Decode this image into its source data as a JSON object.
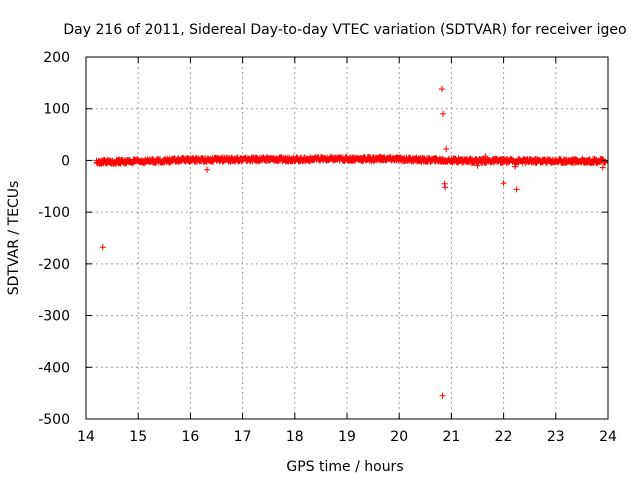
{
  "chart_data": {
    "type": "scatter",
    "title": "Day 216 of 2011, Sidereal Day-to-day VTEC variation (SDTVAR) for receiver igeo",
    "xlabel": "GPS time / hours",
    "ylabel": "SDTVAR / TECUs",
    "xlim": [
      14,
      24
    ],
    "ylim": [
      -500,
      200
    ],
    "x_ticks": [
      14,
      15,
      16,
      17,
      18,
      19,
      20,
      21,
      22,
      23,
      24
    ],
    "y_ticks": [
      -500,
      -400,
      -300,
      -200,
      -100,
      0,
      100,
      200
    ],
    "x_tick_labels": [
      "14",
      "15",
      "16",
      "17",
      "18",
      "19",
      "20",
      "21",
      "22",
      "23",
      "24"
    ],
    "y_tick_labels": [
      "-500",
      "-400",
      "-300",
      "-200",
      "-100",
      "0",
      "100",
      "200"
    ],
    "grid": true,
    "marker": "+",
    "color": "#ff0000",
    "series": [
      {
        "name": "SDTVAR",
        "band": {
          "x_start": 14.2,
          "x_end": 23.95,
          "center": [
            [
              14.2,
              -3
            ],
            [
              15.0,
              -2
            ],
            [
              16.0,
              1
            ],
            [
              17.0,
              2
            ],
            [
              18.0,
              2
            ],
            [
              19.0,
              3
            ],
            [
              19.8,
              3
            ],
            [
              20.5,
              1
            ],
            [
              21.0,
              0
            ],
            [
              22.0,
              -1
            ],
            [
              23.0,
              -1
            ],
            [
              23.95,
              -1
            ]
          ],
          "spread": 4
        },
        "outliers": [
          [
            14.32,
            -168
          ],
          [
            20.82,
            138
          ],
          [
            20.84,
            90
          ],
          [
            20.9,
            22
          ],
          [
            20.87,
            -45
          ],
          [
            20.88,
            -52
          ],
          [
            20.83,
            -455
          ],
          [
            16.32,
            -18
          ],
          [
            21.5,
            -10
          ],
          [
            21.65,
            8
          ],
          [
            22.0,
            -44
          ],
          [
            22.22,
            -12
          ],
          [
            22.25,
            -56
          ],
          [
            23.9,
            -14
          ]
        ]
      }
    ]
  }
}
